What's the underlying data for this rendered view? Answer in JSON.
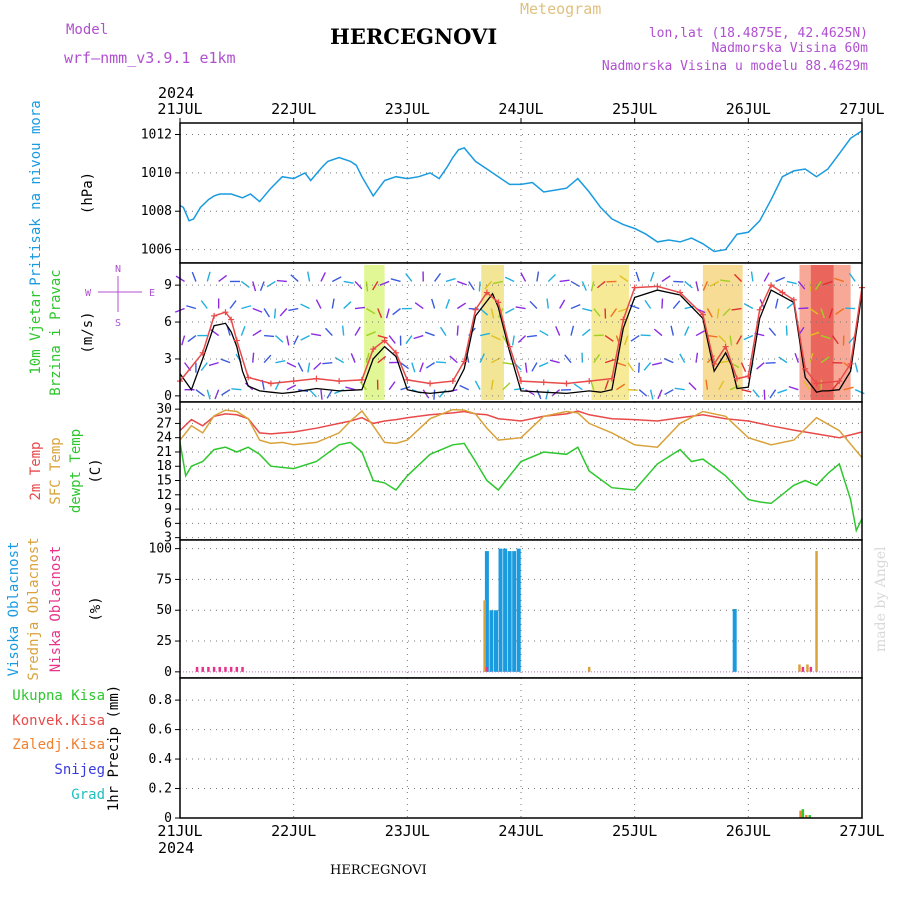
{
  "header": {
    "model_label": "Model",
    "model_name": "wrf—nmm_v3.9.1 e1km",
    "title": "HERCEGNOVI",
    "meteogram": "Meteogram",
    "lonlat": "lon,lat (18.4875E, 42.4625N)",
    "altitude": "Nadmorska Visina 60m",
    "model_altitude": "Nadmorska Visina u modelu 88.4629m",
    "year_top": "2024",
    "year_bottom": "2024",
    "footer_title": "HERCEGNOVI",
    "credit": "made by Angel"
  },
  "colors": {
    "pressure": "#1a9be0",
    "temp2m": "#e84a4a",
    "sfc_temp": "#d9a23a",
    "dewpt": "#2ec72e",
    "wind_speed": "#000000",
    "wind_gust": "#e84a4a",
    "high_cloud": "#1a9be0",
    "mid_cloud": "#d9a23a",
    "low_cloud": "#e8338a",
    "total_precip": "#2ec72e",
    "conv_precip": "#e84a4a",
    "frozen_precip": "#f08030",
    "snow": "#3a3ae0",
    "hail": "#20c0c0",
    "label_purple": "#b050d0",
    "label_meteogram": "#e0c080"
  },
  "chart_data": [
    {
      "type": "line",
      "panel": "pressure",
      "ylabel_lines": [
        "Pritisak na nivou mora",
        "(hPa)"
      ],
      "ylim": [
        1005.3,
        1012.6
      ],
      "yticks": [
        "1006",
        "1008",
        "1010",
        "1012"
      ],
      "x_categories": [
        "21JUL",
        "22JUL",
        "23JUL",
        "24JUL",
        "25JUL",
        "26JUL",
        "27JUL"
      ],
      "series": [
        {
          "key": "pressure",
          "x": [
            0,
            0.03,
            0.08,
            0.12,
            0.18,
            0.25,
            0.3,
            0.35,
            0.45,
            0.55,
            0.62,
            0.7,
            0.8,
            0.9,
            1.0,
            1.1,
            1.15,
            1.25,
            1.3,
            1.4,
            1.5,
            1.55,
            1.6,
            1.7,
            1.8,
            1.9,
            2.0,
            2.1,
            2.2,
            2.28,
            2.35,
            2.4,
            2.45,
            2.5,
            2.6,
            2.7,
            2.8,
            2.9,
            3.0,
            3.1,
            3.2,
            3.3,
            3.4,
            3.5,
            3.6,
            3.7,
            3.8,
            3.9,
            4.0,
            4.1,
            4.2,
            4.3,
            4.4,
            4.5,
            4.6,
            4.7,
            4.8,
            4.9,
            5.0,
            5.1,
            5.2,
            5.3,
            5.4,
            5.5,
            5.6,
            5.7,
            5.8,
            5.9,
            6.0
          ],
          "values": [
            1008.3,
            1008.2,
            1007.5,
            1007.6,
            1008.2,
            1008.6,
            1008.8,
            1008.9,
            1008.9,
            1008.7,
            1008.9,
            1008.5,
            1009.2,
            1009.8,
            1009.7,
            1010.0,
            1009.6,
            1010.3,
            1010.6,
            1010.8,
            1010.6,
            1010.4,
            1009.8,
            1008.8,
            1009.6,
            1009.8,
            1009.7,
            1009.8,
            1010.0,
            1009.7,
            1010.3,
            1010.8,
            1011.2,
            1011.3,
            1010.6,
            1010.2,
            1009.8,
            1009.4,
            1009.4,
            1009.5,
            1009.0,
            1009.1,
            1009.2,
            1009.7,
            1009.0,
            1008.2,
            1007.6,
            1007.3,
            1007.1,
            1006.8,
            1006.4,
            1006.5,
            1006.4,
            1006.6,
            1006.3,
            1005.9,
            1006.0,
            1006.8,
            1006.9,
            1007.5,
            1008.6,
            1009.8,
            1010.1,
            1010.2,
            1009.8,
            1010.2,
            1011.0,
            1011.8,
            1012.2
          ]
        }
      ]
    },
    {
      "type": "line",
      "panel": "wind",
      "ylabel_lines": [
        "10m Vjetar",
        "Brzina i Pravac",
        "(m/s)"
      ],
      "compass_labels": [
        "N",
        "W",
        "E",
        "S"
      ],
      "ylim": [
        -0.5,
        10.8
      ],
      "yticks": [
        "0",
        "3",
        "6",
        "9"
      ],
      "colored_bands": [
        {
          "from": 1.62,
          "to": 1.8,
          "color": "#c8f040"
        },
        {
          "from": 2.65,
          "to": 2.85,
          "color": "#e8d040"
        },
        {
          "from": 3.62,
          "to": 3.95,
          "color": "#f0d840"
        },
        {
          "from": 4.6,
          "to": 4.95,
          "color": "#f0c040"
        },
        {
          "from": 5.45,
          "to": 5.9,
          "color": "#f06040"
        },
        {
          "from": 5.55,
          "to": 5.75,
          "color": "#e03030"
        }
      ],
      "series": [
        {
          "key": "wind_speed",
          "x": [
            0,
            0.1,
            0.2,
            0.3,
            0.4,
            0.45,
            0.5,
            0.55,
            0.6,
            0.7,
            0.8,
            0.9,
            1.0,
            1.2,
            1.4,
            1.6,
            1.7,
            1.8,
            1.9,
            2.0,
            2.1,
            2.2,
            2.3,
            2.4,
            2.5,
            2.6,
            2.7,
            2.75,
            2.8,
            2.9,
            3.0,
            3.2,
            3.4,
            3.6,
            3.7,
            3.8,
            3.9,
            4.0,
            4.2,
            4.4,
            4.6,
            4.7,
            4.8,
            4.85,
            4.9,
            5.0,
            5.1,
            5.2,
            5.3,
            5.4,
            5.5,
            5.6,
            5.65,
            5.7,
            5.8,
            5.9,
            6.0
          ],
          "values": [
            1.8,
            0.5,
            3.0,
            5.7,
            5.9,
            5.2,
            4.0,
            2.0,
            0.8,
            0.4,
            0.3,
            0.2,
            0.3,
            0.6,
            0.4,
            0.5,
            3.0,
            4.0,
            3.2,
            0.5,
            0.3,
            0.2,
            0.3,
            0.4,
            2.2,
            6.5,
            7.7,
            8.3,
            7.2,
            3.6,
            0.4,
            0.3,
            0.2,
            0.4,
            0.3,
            0.5,
            5.5,
            8.0,
            8.6,
            8.2,
            6.3,
            2.0,
            3.5,
            2.5,
            0.6,
            0.7,
            6.3,
            8.6,
            8.1,
            7.6,
            1.5,
            0.3,
            0.4,
            0.4,
            0.5,
            2.0,
            8.4
          ]
        },
        {
          "key": "wind_gust",
          "x": [
            0,
            0.2,
            0.3,
            0.4,
            0.45,
            0.5,
            0.6,
            0.8,
            1.0,
            1.2,
            1.4,
            1.6,
            1.7,
            1.8,
            1.9,
            2.0,
            2.2,
            2.4,
            2.5,
            2.6,
            2.7,
            2.8,
            2.9,
            3.0,
            3.2,
            3.4,
            3.6,
            3.8,
            3.9,
            4.0,
            4.2,
            4.4,
            4.6,
            4.7,
            4.8,
            4.9,
            5.0,
            5.1,
            5.2,
            5.3,
            5.4,
            5.5,
            5.6,
            5.8,
            5.9,
            6.0
          ],
          "values": [
            1.2,
            3.5,
            6.5,
            6.8,
            6.2,
            4.5,
            1.5,
            1.0,
            1.2,
            1.4,
            1.2,
            1.3,
            3.8,
            4.5,
            3.5,
            1.3,
            1.0,
            1.2,
            2.8,
            7.0,
            8.4,
            7.6,
            4.0,
            1.2,
            1.1,
            1.0,
            1.2,
            1.4,
            6.2,
            8.8,
            8.9,
            8.4,
            6.6,
            2.6,
            4.0,
            1.4,
            1.6,
            7.0,
            9.0,
            8.4,
            7.8,
            2.2,
            1.0,
            1.2,
            2.6,
            8.8
          ]
        }
      ]
    },
    {
      "type": "line",
      "panel": "temperature",
      "ylabel_lines": [
        "2m Temp",
        "SFC Temp",
        "dewpt Temp",
        "(C)"
      ],
      "ylim": [
        2.5,
        31.5
      ],
      "yticks": [
        "3",
        "6",
        "9",
        "12",
        "15",
        "18",
        "21",
        "24",
        "27",
        "30"
      ],
      "series": [
        {
          "key": "temp2m",
          "x": [
            0,
            0.1,
            0.2,
            0.3,
            0.4,
            0.5,
            0.6,
            0.7,
            0.8,
            0.9,
            1.0,
            1.2,
            1.4,
            1.5,
            1.6,
            1.7,
            1.8,
            1.9,
            2.0,
            2.2,
            2.4,
            2.5,
            2.6,
            2.7,
            2.8,
            3.0,
            3.2,
            3.4,
            3.5,
            3.6,
            3.8,
            4.0,
            4.2,
            4.4,
            4.6,
            4.8,
            5.0,
            5.2,
            5.4,
            5.6,
            5.8,
            6.0
          ],
          "values": [
            25.5,
            27.8,
            26.5,
            28.5,
            29.0,
            28.8,
            28.0,
            25.0,
            24.8,
            25.0,
            25.2,
            26.0,
            27.0,
            27.5,
            28.2,
            27.0,
            27.5,
            27.8,
            28.2,
            28.8,
            29.2,
            29.5,
            29.0,
            28.8,
            28.0,
            27.5,
            28.5,
            29.0,
            29.6,
            28.8,
            28.0,
            27.8,
            27.5,
            28.2,
            28.8,
            28.0,
            27.5,
            26.5,
            25.6,
            24.8,
            24.0,
            25.2
          ]
        },
        {
          "key": "sfc_temp",
          "x": [
            0,
            0.1,
            0.2,
            0.3,
            0.4,
            0.5,
            0.6,
            0.7,
            0.8,
            0.9,
            1.0,
            1.2,
            1.4,
            1.5,
            1.6,
            1.7,
            1.8,
            1.9,
            2.0,
            2.2,
            2.4,
            2.5,
            2.6,
            2.7,
            2.8,
            3.0,
            3.2,
            3.4,
            3.5,
            3.6,
            3.8,
            4.0,
            4.2,
            4.4,
            4.6,
            4.8,
            5.0,
            5.2,
            5.4,
            5.6,
            5.8,
            6.0
          ],
          "values": [
            23.5,
            26.5,
            25.0,
            28.6,
            29.8,
            29.5,
            28.0,
            23.5,
            22.8,
            23.0,
            22.5,
            23.0,
            25.0,
            27.5,
            29.6,
            26.5,
            23.0,
            22.8,
            23.5,
            28.0,
            29.9,
            29.8,
            29.0,
            26.0,
            23.5,
            24.0,
            28.5,
            29.5,
            29.2,
            27.0,
            25.0,
            22.5,
            22.0,
            27.0,
            29.5,
            28.5,
            24.0,
            22.5,
            23.5,
            28.2,
            25.5,
            19.8
          ]
        },
        {
          "key": "dewpt",
          "x": [
            0,
            0.05,
            0.1,
            0.2,
            0.3,
            0.4,
            0.5,
            0.6,
            0.7,
            0.8,
            1.0,
            1.2,
            1.4,
            1.5,
            1.6,
            1.7,
            1.8,
            1.9,
            2.0,
            2.2,
            2.4,
            2.5,
            2.6,
            2.7,
            2.8,
            2.9,
            3.0,
            3.2,
            3.4,
            3.5,
            3.6,
            3.8,
            4.0,
            4.2,
            4.4,
            4.5,
            4.6,
            4.8,
            5.0,
            5.1,
            5.2,
            5.4,
            5.5,
            5.6,
            5.7,
            5.8,
            5.9,
            5.95,
            6.0
          ],
          "values": [
            23.0,
            16.0,
            18.0,
            19.0,
            21.5,
            22.0,
            21.0,
            22.0,
            20.5,
            18.0,
            17.5,
            19.0,
            22.5,
            23.0,
            21.0,
            15.0,
            14.5,
            13.0,
            16.0,
            20.5,
            22.5,
            22.8,
            19.0,
            15.0,
            13.0,
            16.0,
            19.0,
            21.0,
            20.5,
            22.0,
            17.0,
            13.5,
            13.0,
            18.5,
            21.5,
            19.0,
            19.5,
            16.0,
            11.0,
            10.5,
            10.2,
            14.0,
            15.0,
            14.0,
            16.5,
            18.5,
            11.0,
            4.5,
            7.0
          ]
        }
      ]
    },
    {
      "type": "bar",
      "panel": "clouds",
      "ylabel_lines": [
        "Visoka Oblacnost",
        "Srednja Oblacnost",
        "Niska Oblacnost",
        "(%)"
      ],
      "ylim": [
        -5,
        107
      ],
      "yticks": [
        "0",
        "25",
        "50",
        "75",
        "100"
      ],
      "series": [
        {
          "key": "high_cloud",
          "x": [
            2.7,
            2.74,
            2.78,
            2.82,
            2.86,
            2.9,
            2.94,
            2.98,
            4.88
          ],
          "values": [
            98,
            50,
            50,
            100,
            100,
            98,
            98,
            100,
            51
          ]
        },
        {
          "key": "mid_cloud",
          "x": [
            2.68,
            3.6,
            5.45,
            5.52,
            5.6
          ],
          "values": [
            58,
            4,
            6,
            6,
            98
          ]
        },
        {
          "key": "low_cloud",
          "x": [
            0.15,
            0.2,
            0.25,
            0.3,
            0.35,
            0.4,
            0.45,
            0.5,
            0.55,
            2.7,
            5.48,
            5.55
          ],
          "values": [
            4,
            4,
            4,
            4,
            4,
            4,
            4,
            4,
            4,
            4,
            4,
            4
          ]
        }
      ]
    },
    {
      "type": "bar",
      "panel": "precip",
      "ylabel_lines": [
        "1hr Precip (mm)"
      ],
      "legend": [
        "Ukupna Kisa",
        "Konvek.Kisa",
        "Zaledj.Kisa",
        "Snijeg",
        "Grad"
      ],
      "ylim": [
        0,
        0.95
      ],
      "yticks": [
        "0",
        "0.2",
        "0.4",
        "0.6",
        "0.8"
      ],
      "series": [
        {
          "key": "total_precip",
          "x": [
            5.48,
            5.54
          ],
          "values": [
            0.06,
            0.02
          ]
        },
        {
          "key": "frozen_precip",
          "x": [
            5.46,
            5.51
          ],
          "values": [
            0.05,
            0.02
          ]
        }
      ]
    }
  ]
}
